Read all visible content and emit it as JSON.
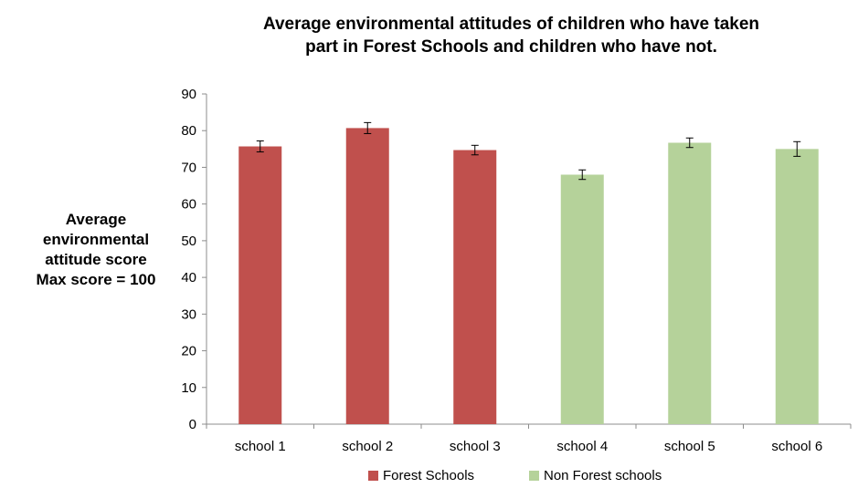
{
  "chart_data": {
    "type": "bar",
    "title_lines": [
      "Average environmental attitudes of children who have taken",
      "part in Forest Schools and children who have not."
    ],
    "ylabel_lines": [
      "Average",
      "environmental",
      "attitude score",
      "Max score = 100"
    ],
    "xlabel": "",
    "categories": [
      "school 1",
      "school 2",
      "school 3",
      "school 4",
      "school 5",
      "school 6"
    ],
    "values": [
      75.7,
      80.7,
      74.7,
      68,
      76.7,
      75
    ],
    "errors": [
      1.5,
      1.5,
      1.3,
      1.3,
      1.3,
      2.0
    ],
    "groups": [
      "Forest Schools",
      "Forest Schools",
      "Forest Schools",
      "Non Forest schools",
      "Non Forest schools",
      "Non Forest schools"
    ],
    "ylim": [
      0,
      90
    ],
    "yticks": [
      0,
      10,
      20,
      30,
      40,
      50,
      60,
      70,
      80,
      90
    ],
    "grid": false,
    "legend_position": "bottom",
    "legend": [
      {
        "label": "Forest Schools",
        "color": "#c0504d"
      },
      {
        "label": "Non Forest schools",
        "color": "#b5d29a"
      }
    ]
  }
}
